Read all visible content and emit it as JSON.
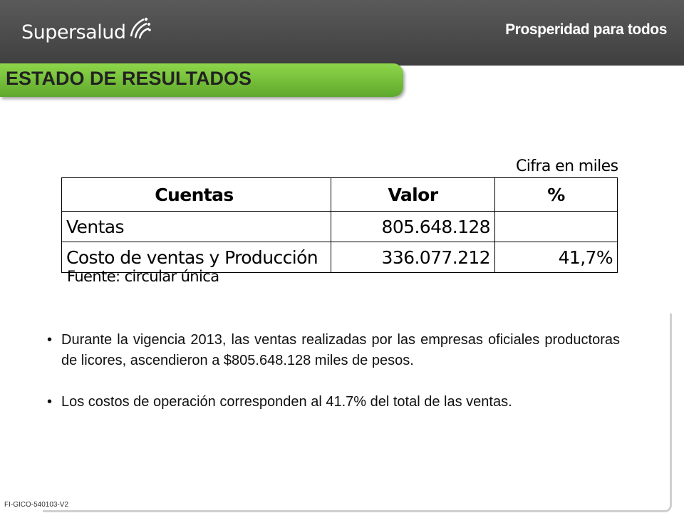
{
  "header": {
    "logo_text": "Supersalud",
    "slogan": "Prosperidad para todos"
  },
  "title": "ESTADO DE RESULTADOS",
  "table": {
    "unit_note": "Cifra en miles",
    "columns": [
      "Cuentas",
      "Valor",
      "%"
    ],
    "rows": [
      {
        "cuenta": "Ventas",
        "valor": "805.648.128",
        "pct": ""
      },
      {
        "cuenta": "Costo de ventas y Producción",
        "valor": "336.077.212",
        "pct": "41,7%"
      }
    ],
    "source": "Fuente: circular única"
  },
  "bullets": [
    {
      "text": "Durante la vigencia 2013, las ventas realizadas por las empresas oficiales productoras de licores, ascendieron a $805.648.128 miles de pesos."
    },
    {
      "text": "Los costos de operación corresponden al 41.7% del total de las ventas."
    }
  ],
  "bullet_symbol": "•",
  "footer_code": "FI-GICO-540103-V2",
  "colors": {
    "header_bg": "#4a4a4a",
    "title_green": "#6fbf35"
  }
}
